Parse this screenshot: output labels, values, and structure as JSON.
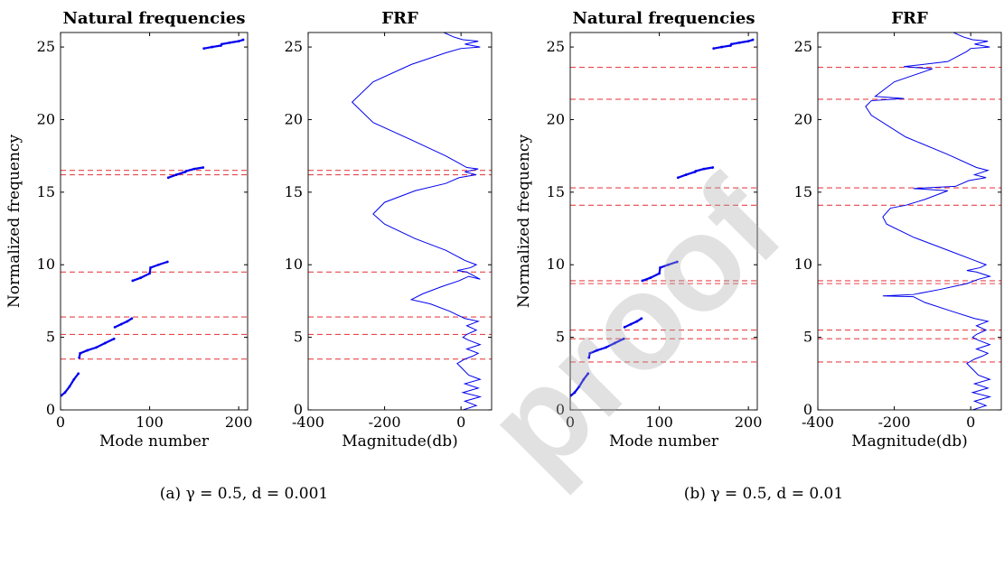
{
  "figure": {
    "watermark": "proof",
    "colors": {
      "curve": "#0000ee",
      "reference": "#e8454a",
      "axis": "#000000"
    }
  },
  "chart_data": [
    {
      "type": "scatter",
      "panel": "a-left",
      "title": "Natural frequencies",
      "xlabel": "Mode number",
      "ylabel": "Normalized frequency",
      "xlim": [
        0,
        210
      ],
      "ylim": [
        0,
        26
      ],
      "xticks": [
        0,
        100,
        200
      ],
      "yticks": [
        0,
        5,
        10,
        15,
        20,
        25
      ],
      "series": [
        {
          "points": [
            [
              1,
              1.0
            ],
            [
              5,
              1.2
            ],
            [
              10,
              1.6
            ],
            [
              15,
              2.1
            ],
            [
              20,
              2.5
            ],
            [
              21,
              3.6
            ],
            [
              22,
              3.9
            ],
            [
              30,
              4.1
            ],
            [
              40,
              4.3
            ],
            [
              50,
              4.6
            ],
            [
              60,
              4.9
            ],
            [
              61,
              5.7
            ],
            [
              68,
              5.9
            ],
            [
              75,
              6.1
            ],
            [
              80,
              6.3
            ],
            [
              81,
              8.9
            ],
            [
              90,
              9.1
            ],
            [
              100,
              9.4
            ],
            [
              101,
              9.8
            ],
            [
              110,
              10.0
            ],
            [
              120,
              10.2
            ],
            [
              121,
              16.0
            ],
            [
              130,
              16.2
            ],
            [
              140,
              16.4
            ],
            [
              141,
              16.45
            ],
            [
              150,
              16.6
            ],
            [
              160,
              16.7
            ],
            [
              161,
              24.9
            ],
            [
              170,
              25.0
            ],
            [
              180,
              25.1
            ],
            [
              181,
              25.2
            ],
            [
              190,
              25.3
            ],
            [
              200,
              25.4
            ],
            [
              205,
              25.5
            ]
          ]
        }
      ],
      "reference_lines": [
        3.5,
        5.2,
        6.4,
        9.5,
        16.2,
        16.5
      ]
    },
    {
      "type": "line",
      "panel": "a-right",
      "title": "FRF",
      "xlabel": "Magnitude(db)",
      "xlim": [
        -400,
        80
      ],
      "ylim": [
        0,
        26
      ],
      "xticks": [
        -400,
        -200,
        0
      ],
      "yticks": [
        0,
        5,
        10,
        15,
        20,
        25
      ],
      "series": [
        {
          "points": [
            [
              5,
              0
            ],
            [
              40,
              0.3
            ],
            [
              10,
              0.6
            ],
            [
              50,
              0.9
            ],
            [
              5,
              1.2
            ],
            [
              45,
              1.5
            ],
            [
              10,
              1.8
            ],
            [
              50,
              2.1
            ],
            [
              20,
              2.4
            ],
            [
              5,
              2.8
            ],
            [
              -10,
              3.2
            ],
            [
              10,
              3.5
            ],
            [
              30,
              3.7
            ],
            [
              45,
              3.9
            ],
            [
              15,
              4.2
            ],
            [
              50,
              4.5
            ],
            [
              20,
              4.8
            ],
            [
              5,
              5.0
            ],
            [
              15,
              5.2
            ],
            [
              40,
              5.5
            ],
            [
              15,
              5.8
            ],
            [
              45,
              6.1
            ],
            [
              10,
              6.3
            ],
            [
              -30,
              6.8
            ],
            [
              -80,
              7.3
            ],
            [
              -130,
              7.6
            ],
            [
              -100,
              8.0
            ],
            [
              -50,
              8.5
            ],
            [
              -5,
              8.9
            ],
            [
              20,
              9.2
            ],
            [
              50,
              9.0
            ],
            [
              15,
              9.5
            ],
            [
              -10,
              9.6
            ],
            [
              25,
              9.8
            ],
            [
              40,
              10.0
            ],
            [
              10,
              10.3
            ],
            [
              -40,
              11.0
            ],
            [
              -120,
              11.8
            ],
            [
              -200,
              12.8
            ],
            [
              -230,
              13.5
            ],
            [
              -200,
              14.3
            ],
            [
              -120,
              15.1
            ],
            [
              -40,
              15.6
            ],
            [
              -5,
              16.0
            ],
            [
              40,
              16.2
            ],
            [
              10,
              16.4
            ],
            [
              45,
              16.6
            ],
            [
              15,
              16.7
            ],
            [
              -40,
              17.5
            ],
            [
              -130,
              18.6
            ],
            [
              -230,
              19.8
            ],
            [
              -285,
              21.2
            ],
            [
              -230,
              22.6
            ],
            [
              -130,
              23.8
            ],
            [
              -40,
              24.6
            ],
            [
              0,
              24.9
            ],
            [
              50,
              25.0
            ],
            [
              10,
              25.2
            ],
            [
              45,
              25.4
            ],
            [
              5,
              25.5
            ],
            [
              -20,
              25.7
            ],
            [
              -45,
              26.0
            ]
          ]
        }
      ],
      "reference_lines": [
        3.5,
        5.2,
        6.4,
        9.5,
        16.2,
        16.5
      ]
    },
    {
      "type": "scatter",
      "panel": "b-left",
      "title": "Natural frequencies",
      "xlabel": "Mode number",
      "ylabel": "Normalized frequency",
      "xlim": [
        0,
        210
      ],
      "ylim": [
        0,
        26
      ],
      "xticks": [
        0,
        100,
        200
      ],
      "yticks": [
        0,
        5,
        10,
        15,
        20,
        25
      ],
      "series": [
        {
          "points": [
            [
              1,
              1.0
            ],
            [
              5,
              1.2
            ],
            [
              10,
              1.6
            ],
            [
              15,
              2.1
            ],
            [
              20,
              2.5
            ],
            [
              21,
              3.6
            ],
            [
              22,
              3.9
            ],
            [
              30,
              4.1
            ],
            [
              40,
              4.3
            ],
            [
              50,
              4.6
            ],
            [
              60,
              4.9
            ],
            [
              61,
              5.7
            ],
            [
              68,
              5.9
            ],
            [
              75,
              6.1
            ],
            [
              80,
              6.3
            ],
            [
              81,
              8.9
            ],
            [
              90,
              9.1
            ],
            [
              100,
              9.4
            ],
            [
              101,
              9.8
            ],
            [
              110,
              10.0
            ],
            [
              120,
              10.2
            ],
            [
              121,
              16.0
            ],
            [
              130,
              16.2
            ],
            [
              140,
              16.4
            ],
            [
              141,
              16.45
            ],
            [
              150,
              16.6
            ],
            [
              160,
              16.7
            ],
            [
              161,
              24.9
            ],
            [
              170,
              25.0
            ],
            [
              180,
              25.1
            ],
            [
              181,
              25.2
            ],
            [
              190,
              25.3
            ],
            [
              200,
              25.4
            ],
            [
              205,
              25.5
            ]
          ]
        }
      ],
      "reference_lines": [
        3.3,
        4.9,
        5.5,
        8.7,
        8.9,
        14.1,
        15.3,
        21.4,
        23.6
      ]
    },
    {
      "type": "line",
      "panel": "b-right",
      "title": "FRF",
      "xlabel": "Magnitude(db)",
      "xlim": [
        -400,
        80
      ],
      "ylim": [
        0,
        26
      ],
      "xticks": [
        -400,
        -200,
        0
      ],
      "yticks": [
        0,
        5,
        10,
        15,
        20,
        25
      ],
      "series": [
        {
          "points": [
            [
              5,
              0
            ],
            [
              40,
              0.3
            ],
            [
              10,
              0.6
            ],
            [
              50,
              0.9
            ],
            [
              5,
              1.2
            ],
            [
              45,
              1.5
            ],
            [
              10,
              1.8
            ],
            [
              50,
              2.1
            ],
            [
              20,
              2.4
            ],
            [
              5,
              2.8
            ],
            [
              -10,
              3.2
            ],
            [
              10,
              3.5
            ],
            [
              30,
              3.7
            ],
            [
              45,
              3.9
            ],
            [
              15,
              4.2
            ],
            [
              50,
              4.5
            ],
            [
              20,
              4.8
            ],
            [
              5,
              5.0
            ],
            [
              15,
              5.2
            ],
            [
              40,
              5.5
            ],
            [
              15,
              5.8
            ],
            [
              45,
              6.1
            ],
            [
              10,
              6.3
            ],
            [
              -50,
              6.8
            ],
            [
              -120,
              7.4
            ],
            [
              -150,
              7.8
            ],
            [
              -230,
              7.85
            ],
            [
              -150,
              7.95
            ],
            [
              -80,
              8.3
            ],
            [
              -10,
              8.7
            ],
            [
              20,
              9.0
            ],
            [
              50,
              9.2
            ],
            [
              15,
              9.5
            ],
            [
              -10,
              9.6
            ],
            [
              25,
              9.8
            ],
            [
              40,
              10.0
            ],
            [
              10,
              10.3
            ],
            [
              -60,
              11.0
            ],
            [
              -150,
              11.9
            ],
            [
              -220,
              12.8
            ],
            [
              -230,
              13.3
            ],
            [
              -210,
              13.9
            ],
            [
              -170,
              14.1
            ],
            [
              -120,
              14.5
            ],
            [
              -60,
              15.1
            ],
            [
              -150,
              15.25
            ],
            [
              -40,
              15.4
            ],
            [
              -5,
              15.8
            ],
            [
              40,
              16.0
            ],
            [
              10,
              16.2
            ],
            [
              45,
              16.5
            ],
            [
              15,
              16.7
            ],
            [
              -60,
              17.6
            ],
            [
              -170,
              18.8
            ],
            [
              -260,
              20.3
            ],
            [
              -275,
              20.9
            ],
            [
              -260,
              21.3
            ],
            [
              -175,
              21.45
            ],
            [
              -250,
              21.6
            ],
            [
              -200,
              22.6
            ],
            [
              -100,
              23.5
            ],
            [
              -175,
              23.65
            ],
            [
              -60,
              24.0
            ],
            [
              -10,
              24.7
            ],
            [
              0,
              24.9
            ],
            [
              50,
              25.0
            ],
            [
              10,
              25.2
            ],
            [
              45,
              25.4
            ],
            [
              5,
              25.5
            ],
            [
              -20,
              25.7
            ],
            [
              -45,
              26.0
            ]
          ]
        }
      ],
      "reference_lines": [
        3.3,
        4.9,
        5.5,
        8.7,
        8.9,
        14.1,
        15.3,
        21.4,
        23.6
      ]
    }
  ],
  "captions": {
    "a": "(a) γ = 0.5, d = 0.001",
    "b": "(b) γ = 0.5, d = 0.01"
  }
}
